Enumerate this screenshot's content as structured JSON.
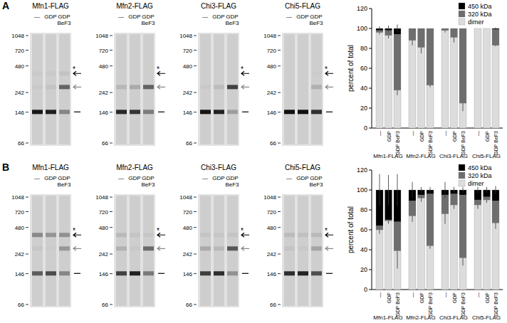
{
  "panel_labels": [
    "A",
    "B"
  ],
  "gel": {
    "lanes": [
      "—",
      "GDP",
      "GDP BeF3"
    ],
    "markers": [
      1048,
      720,
      480,
      242,
      146,
      66
    ],
    "star": "*"
  },
  "chart_data": [
    {
      "type": "bar",
      "stacked": true,
      "y_label": "percent of total",
      "legend": "top-right",
      "groups": [
        "Mfn1-FLAG",
        "Mfn2-FLAG",
        "Chi3-FLAG",
        "Chi5-FLAG"
      ],
      "categories": [
        "—",
        "GDP",
        "GDP BeF3",
        "—",
        "GDP",
        "GDP BeF3",
        "—",
        "GDP",
        "GDP BeF3",
        "—",
        "GDP",
        "GDP BeF3"
      ],
      "ylim": [
        0,
        120
      ],
      "yticks": [
        0,
        20,
        40,
        60,
        80,
        100,
        120
      ],
      "series": [
        {
          "name": "dimer",
          "color": "#dcdcdc",
          "values": [
            96,
            93,
            38,
            88,
            81,
            43,
            98,
            91,
            25,
            100,
            100,
            83
          ],
          "errors": [
            2,
            3,
            5,
            5,
            6,
            2,
            2,
            5,
            8,
            0,
            0,
            1
          ]
        },
        {
          "name": "320 kDa",
          "color": "#6e6e6e",
          "values": [
            2,
            5,
            56,
            12,
            19,
            57,
            2,
            9,
            75,
            0,
            0,
            16
          ]
        },
        {
          "name": "450 kDa",
          "color": "#000000",
          "values": [
            2,
            2,
            6,
            0,
            0,
            0,
            0,
            0,
            0,
            0,
            0,
            1
          ],
          "errors": [
            2,
            3,
            4,
            0,
            0,
            0,
            0,
            0,
            0,
            0,
            0,
            1
          ]
        }
      ]
    },
    {
      "type": "bar",
      "stacked": true,
      "y_label": "percent of total",
      "legend": "top-right",
      "groups": [
        "Mfn1-FLAG",
        "Mfn2-FLAG",
        "Chi3-FLAG",
        "Chi5-FLAG"
      ],
      "categories": [
        "—",
        "GDP",
        "GDP BeF3",
        "—",
        "GDP",
        "GDP BeF3",
        "—",
        "GDP",
        "GDP BeF3",
        "—",
        "GDP",
        "GDP BeF3"
      ],
      "ylim": [
        0,
        120
      ],
      "yticks": [
        0,
        20,
        40,
        60,
        80,
        100,
        120
      ],
      "series": [
        {
          "name": "dimer",
          "color": "#dcdcdc",
          "values": [
            60,
            69,
            39,
            74,
            92,
            44,
            76,
            85,
            32,
            85,
            90,
            67
          ],
          "errors": [
            4,
            3,
            18,
            6,
            4,
            3,
            10,
            4,
            8,
            4,
            3,
            6
          ]
        },
        {
          "name": "320 kDa",
          "color": "#6e6e6e",
          "values": [
            4,
            1,
            29,
            15,
            3,
            52,
            19,
            11,
            63,
            5,
            3,
            22
          ]
        },
        {
          "name": "450 kDa",
          "color": "#000000",
          "values": [
            36,
            30,
            32,
            11,
            5,
            4,
            5,
            4,
            5,
            10,
            7,
            11
          ],
          "errors": [
            16,
            15,
            16,
            8,
            3,
            3,
            8,
            3,
            3,
            3,
            3,
            4
          ]
        }
      ]
    }
  ]
}
